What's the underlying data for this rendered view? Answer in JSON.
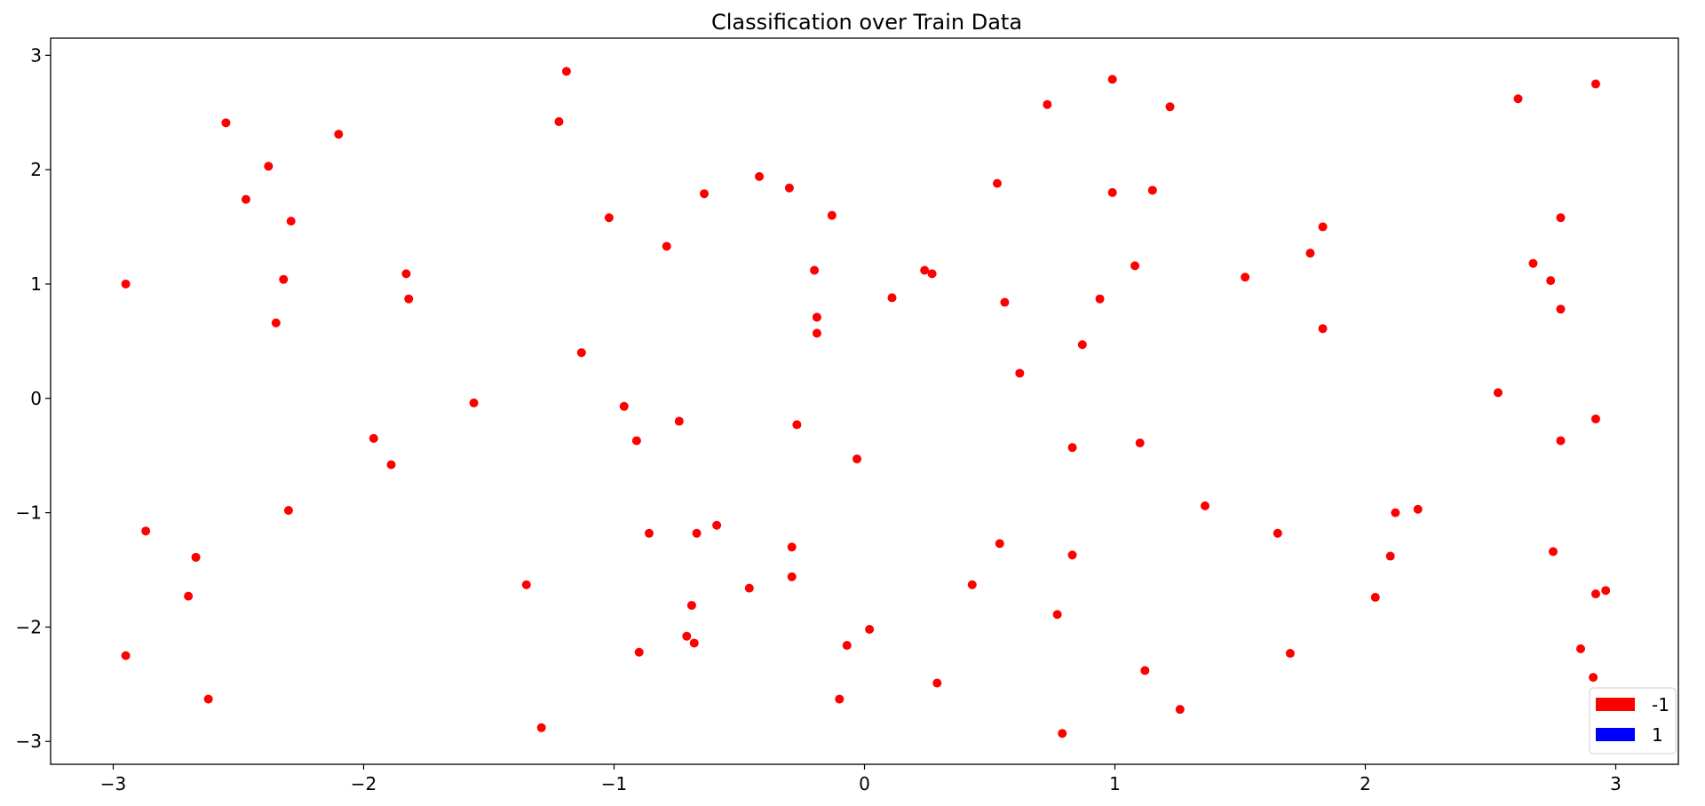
{
  "chart_data": {
    "type": "scatter",
    "title": "Classification over Train Data",
    "xlabel": "",
    "ylabel": "",
    "xlim": [
      -3.25,
      3.25
    ],
    "ylim": [
      -3.2,
      3.15
    ],
    "xticks": [
      -3,
      -2,
      -1,
      0,
      1,
      2,
      3
    ],
    "yticks": [
      -3,
      -2,
      -1,
      0,
      1,
      2,
      3
    ],
    "xtick_labels": [
      "−3",
      "−2",
      "−1",
      "0",
      "1",
      "2",
      "3"
    ],
    "ytick_labels": [
      "−3",
      "−2",
      "−1",
      "0",
      "1",
      "2",
      "3"
    ],
    "grid": false,
    "legend_position": "lower-right",
    "legend": [
      {
        "label": "-1",
        "color": "#ff0000"
      },
      {
        "label": "1",
        "color": "#0000ff"
      }
    ],
    "series": [
      {
        "class": "-1",
        "color": "#ff0000",
        "points": [
          [
            -2.95,
            1.0
          ],
          [
            -2.95,
            -2.25
          ],
          [
            -2.87,
            -1.16
          ],
          [
            -2.7,
            -1.73
          ],
          [
            -2.67,
            -1.39
          ],
          [
            -2.62,
            -2.63
          ],
          [
            -2.55,
            2.41
          ],
          [
            -2.47,
            1.74
          ],
          [
            -2.38,
            2.03
          ],
          [
            -2.35,
            0.66
          ],
          [
            -2.32,
            1.04
          ],
          [
            -2.29,
            1.55
          ],
          [
            -2.3,
            -0.98
          ],
          [
            -2.1,
            2.31
          ],
          [
            -1.96,
            -0.35
          ],
          [
            -1.89,
            -0.58
          ],
          [
            -1.83,
            1.09
          ],
          [
            -1.82,
            0.87
          ],
          [
            -1.56,
            -0.04
          ],
          [
            -1.35,
            -1.63
          ],
          [
            -1.29,
            -2.88
          ],
          [
            -1.22,
            2.42
          ],
          [
            -1.19,
            2.86
          ],
          [
            -1.13,
            0.4
          ],
          [
            -1.02,
            1.58
          ],
          [
            -0.96,
            -0.07
          ],
          [
            -0.91,
            -0.37
          ],
          [
            -0.9,
            -2.22
          ],
          [
            -0.86,
            -1.18
          ],
          [
            -0.79,
            1.33
          ],
          [
            -0.74,
            -0.2
          ],
          [
            -0.71,
            -2.08
          ],
          [
            -0.69,
            -1.81
          ],
          [
            -0.68,
            -2.14
          ],
          [
            -0.67,
            -1.18
          ],
          [
            -0.64,
            1.79
          ],
          [
            -0.59,
            -1.11
          ],
          [
            -0.46,
            -1.66
          ],
          [
            -0.42,
            1.94
          ],
          [
            -0.3,
            1.84
          ],
          [
            -0.29,
            -1.3
          ],
          [
            -0.29,
            -1.56
          ],
          [
            -0.27,
            -0.23
          ],
          [
            -0.2,
            1.12
          ],
          [
            -0.19,
            0.71
          ],
          [
            -0.19,
            0.57
          ],
          [
            -0.13,
            1.6
          ],
          [
            -0.1,
            -2.63
          ],
          [
            -0.07,
            -2.16
          ],
          [
            -0.03,
            -0.53
          ],
          [
            0.02,
            -2.02
          ],
          [
            0.11,
            0.88
          ],
          [
            0.24,
            1.12
          ],
          [
            0.27,
            1.09
          ],
          [
            0.29,
            -2.49
          ],
          [
            0.43,
            -1.63
          ],
          [
            0.53,
            1.88
          ],
          [
            0.54,
            -1.27
          ],
          [
            0.56,
            0.84
          ],
          [
            0.62,
            0.22
          ],
          [
            0.73,
            2.57
          ],
          [
            0.77,
            -1.89
          ],
          [
            0.79,
            -2.93
          ],
          [
            0.83,
            -0.43
          ],
          [
            0.83,
            -1.37
          ],
          [
            0.87,
            0.47
          ],
          [
            0.94,
            0.87
          ],
          [
            0.99,
            2.79
          ],
          [
            0.99,
            1.8
          ],
          [
            1.08,
            1.16
          ],
          [
            1.1,
            -0.39
          ],
          [
            1.12,
            -2.38
          ],
          [
            1.15,
            1.82
          ],
          [
            1.22,
            2.55
          ],
          [
            1.26,
            -2.72
          ],
          [
            1.36,
            -0.94
          ],
          [
            1.52,
            1.06
          ],
          [
            1.65,
            -1.18
          ],
          [
            1.7,
            -2.23
          ],
          [
            1.78,
            1.27
          ],
          [
            1.83,
            1.5
          ],
          [
            1.83,
            0.61
          ],
          [
            2.04,
            -1.74
          ],
          [
            2.1,
            -1.38
          ],
          [
            2.12,
            -1.0
          ],
          [
            2.21,
            -0.97
          ],
          [
            2.53,
            0.05
          ],
          [
            2.61,
            2.62
          ],
          [
            2.67,
            1.18
          ],
          [
            2.74,
            1.03
          ],
          [
            2.75,
            -1.34
          ],
          [
            2.78,
            1.58
          ],
          [
            2.78,
            0.78
          ],
          [
            2.78,
            -0.37
          ],
          [
            2.86,
            -2.19
          ],
          [
            2.91,
            -2.44
          ],
          [
            2.92,
            -1.71
          ],
          [
            2.92,
            -0.18
          ],
          [
            2.92,
            2.75
          ],
          [
            2.96,
            -1.68
          ]
        ]
      },
      {
        "class": "1",
        "color": "#0000ff",
        "points": []
      }
    ]
  }
}
